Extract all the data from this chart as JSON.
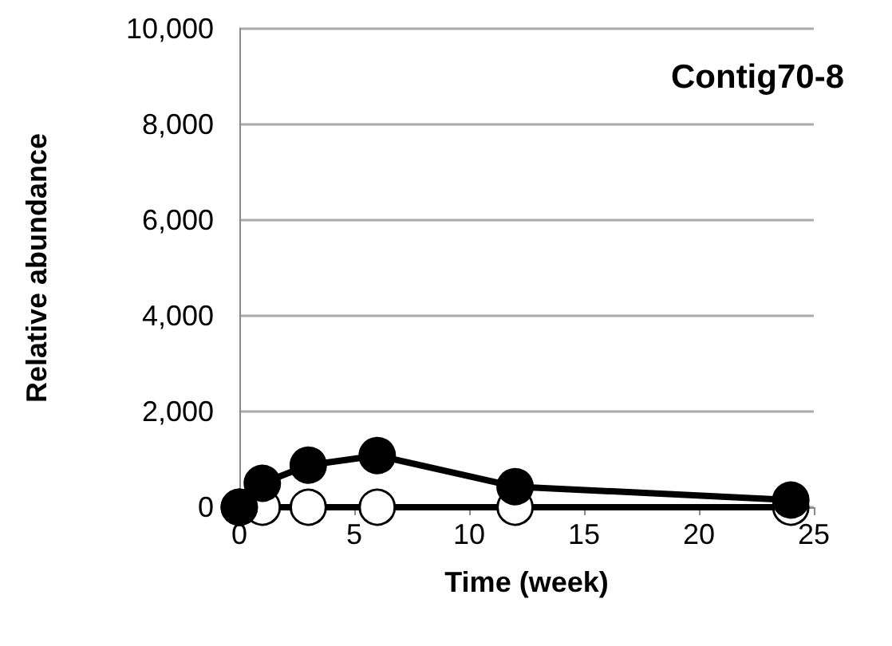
{
  "chart_data": {
    "type": "line",
    "xlabel": "Time (week)",
    "ylabel": "Relative abundance",
    "annotations": [
      "Contig70-8"
    ],
    "xlim": [
      0,
      25
    ],
    "xticks": [
      0,
      5,
      10,
      15,
      20,
      25
    ],
    "ylim": [
      0,
      10000
    ],
    "yticks": [
      0,
      {
        "value": 2000,
        "label": "2,000"
      },
      {
        "value": 4000,
        "label": "4,000"
      },
      {
        "value": 6000,
        "label": "6,000"
      },
      {
        "value": 8000,
        "label": "8,000"
      },
      {
        "value": 10000,
        "label": "10,000"
      }
    ],
    "grid": "y",
    "marker": "circle",
    "line_style": "solid",
    "series": [
      {
        "color": "#ffffff",
        "x": [
          0,
          1,
          3,
          6,
          12,
          24
        ],
        "values": [
          0,
          0,
          0,
          0,
          0,
          0
        ]
      },
      {
        "color": "#000000",
        "x": [
          0,
          1,
          3,
          6,
          12,
          24
        ],
        "values": [
          0,
          500,
          880,
          1080,
          430,
          150
        ]
      }
    ]
  }
}
